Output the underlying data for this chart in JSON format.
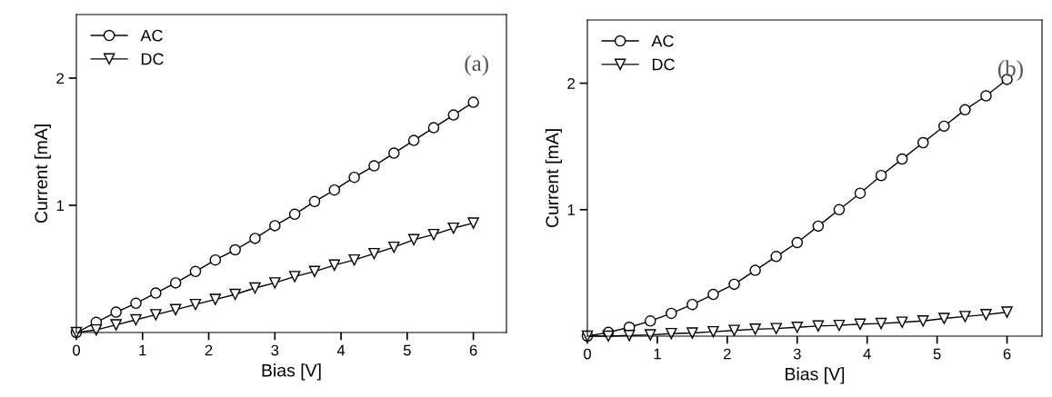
{
  "chart_data": [
    {
      "type": "line",
      "xlabel": "Bias [V]",
      "ylabel": "Current [mA]",
      "annotations": [
        "(a)"
      ],
      "legend": "top left",
      "grid": false,
      "xlim": [
        0,
        6.5
      ],
      "ylim": [
        0,
        2.5
      ],
      "xticks": [
        0,
        1,
        2,
        3,
        4,
        5,
        6
      ],
      "yticks": [
        1,
        2
      ],
      "x": [
        0,
        0.3,
        0.6,
        0.9,
        1.2,
        1.5,
        1.8,
        2.1,
        2.4,
        2.7,
        3.0,
        3.3,
        3.6,
        3.9,
        4.2,
        4.5,
        4.8,
        5.1,
        5.4,
        5.7,
        6.0
      ],
      "series": [
        {
          "name": "AC",
          "color": "#000000",
          "marker": "circle",
          "values": [
            0,
            0.08,
            0.16,
            0.23,
            0.31,
            0.39,
            0.48,
            0.57,
            0.65,
            0.74,
            0.84,
            0.93,
            1.03,
            1.12,
            1.22,
            1.31,
            1.41,
            1.51,
            1.61,
            1.71,
            1.81
          ]
        },
        {
          "name": "DC",
          "color": "#000000",
          "marker": "triangle",
          "values": [
            0,
            0.02,
            0.06,
            0.1,
            0.14,
            0.18,
            0.22,
            0.26,
            0.3,
            0.35,
            0.39,
            0.44,
            0.48,
            0.53,
            0.57,
            0.62,
            0.67,
            0.73,
            0.77,
            0.82,
            0.86
          ]
        }
      ]
    },
    {
      "type": "line",
      "xlabel": "Bias [V]",
      "ylabel": "Current [mA]",
      "annotations": [
        "(b)"
      ],
      "legend": "top left",
      "grid": false,
      "xlim": [
        0,
        6.5
      ],
      "ylim": [
        0,
        2.5
      ],
      "xticks": [
        0,
        1,
        2,
        3,
        4,
        5,
        6
      ],
      "yticks": [
        1,
        2
      ],
      "x": [
        0,
        0.3,
        0.6,
        0.9,
        1.2,
        1.5,
        1.8,
        2.1,
        2.4,
        2.7,
        3.0,
        3.3,
        3.6,
        3.9,
        4.2,
        4.5,
        4.8,
        5.1,
        5.4,
        5.7,
        6.0
      ],
      "series": [
        {
          "name": "AC",
          "color": "#000000",
          "marker": "circle",
          "values": [
            0,
            0.03,
            0.07,
            0.12,
            0.18,
            0.25,
            0.33,
            0.41,
            0.52,
            0.63,
            0.74,
            0.87,
            1.0,
            1.13,
            1.27,
            1.4,
            1.53,
            1.66,
            1.79,
            1.9,
            2.03
          ]
        },
        {
          "name": "DC",
          "color": "#000000",
          "marker": "triangle",
          "values": [
            0,
            0.0,
            0.005,
            0.01,
            0.02,
            0.025,
            0.035,
            0.045,
            0.055,
            0.06,
            0.07,
            0.08,
            0.085,
            0.095,
            0.1,
            0.11,
            0.12,
            0.14,
            0.155,
            0.17,
            0.19
          ]
        }
      ]
    }
  ]
}
